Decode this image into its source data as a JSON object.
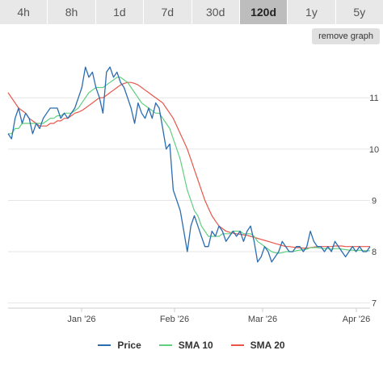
{
  "tabs": [
    {
      "label": "4h",
      "active": false
    },
    {
      "label": "8h",
      "active": false
    },
    {
      "label": "1d",
      "active": false
    },
    {
      "label": "7d",
      "active": false
    },
    {
      "label": "30d",
      "active": false
    },
    {
      "label": "120d",
      "active": true
    },
    {
      "label": "1y",
      "active": false
    },
    {
      "label": "5y",
      "active": false
    }
  ],
  "remove_graph_label": "remove graph",
  "colors": {
    "price": "#2b6cb0",
    "sma10": "#5fcf80",
    "sma20": "#e8564a"
  },
  "chart_data": {
    "type": "line",
    "x_ticks": [
      "Jan '26",
      "Feb '26",
      "Mar '26",
      "Apr '26"
    ],
    "y_ticks": [
      7,
      8,
      9,
      10,
      11
    ],
    "ylim": [
      6.9,
      11.9
    ],
    "grid": true,
    "legend_position": "bottom",
    "series": [
      {
        "name": "Price",
        "color": "#2b6cb0",
        "values": [
          10.3,
          10.2,
          10.6,
          10.8,
          10.5,
          10.7,
          10.6,
          10.3,
          10.5,
          10.4,
          10.6,
          10.7,
          10.8,
          10.8,
          10.8,
          10.6,
          10.7,
          10.6,
          10.7,
          10.8,
          11.0,
          11.2,
          11.6,
          11.4,
          11.5,
          11.2,
          11.0,
          10.7,
          11.5,
          11.6,
          11.4,
          11.5,
          11.3,
          11.2,
          11.0,
          10.8,
          10.5,
          10.9,
          10.7,
          10.6,
          10.8,
          10.6,
          10.9,
          10.8,
          10.4,
          10.0,
          10.1,
          9.2,
          9.0,
          8.8,
          8.4,
          8.0,
          8.5,
          8.7,
          8.5,
          8.3,
          8.1,
          8.1,
          8.4,
          8.3,
          8.5,
          8.4,
          8.2,
          8.3,
          8.4,
          8.3,
          8.4,
          8.2,
          8.4,
          8.5,
          8.2,
          7.8,
          7.9,
          8.1,
          8.0,
          7.8,
          7.9,
          8.0,
          8.2,
          8.1,
          8.0,
          8.0,
          8.1,
          8.1,
          8.0,
          8.1,
          8.4,
          8.2,
          8.1,
          8.1,
          8.0,
          8.1,
          8.0,
          8.2,
          8.1,
          8.0,
          7.9,
          8.0,
          8.1,
          8.0,
          8.1,
          8.0,
          8.0,
          8.1
        ]
      },
      {
        "name": "SMA 10",
        "color": "#5fcf80",
        "values": [
          10.3,
          10.3,
          10.4,
          10.4,
          10.5,
          10.5,
          10.5,
          10.5,
          10.5,
          10.5,
          10.5,
          10.55,
          10.6,
          10.6,
          10.65,
          10.65,
          10.7,
          10.7,
          10.7,
          10.75,
          10.8,
          10.9,
          11.0,
          11.1,
          11.15,
          11.2,
          11.2,
          11.2,
          11.25,
          11.3,
          11.35,
          11.4,
          11.4,
          11.35,
          11.3,
          11.2,
          11.1,
          11.0,
          10.9,
          10.85,
          10.8,
          10.75,
          10.7,
          10.7,
          10.6,
          10.5,
          10.4,
          10.2,
          10.0,
          9.8,
          9.5,
          9.2,
          9.0,
          8.8,
          8.7,
          8.5,
          8.4,
          8.3,
          8.3,
          8.3,
          8.3,
          8.35,
          8.35,
          8.35,
          8.4,
          8.4,
          8.4,
          8.35,
          8.35,
          8.35,
          8.3,
          8.2,
          8.15,
          8.1,
          8.05,
          8.0,
          7.98,
          7.97,
          7.98,
          8.0,
          8.0,
          8.0,
          8.02,
          8.03,
          8.04,
          8.05,
          8.08,
          8.08,
          8.08,
          8.07,
          8.06,
          8.06,
          8.05,
          8.06,
          8.06,
          8.05,
          8.04,
          8.03,
          8.03,
          8.02,
          8.03,
          8.02,
          8.02,
          8.02
        ]
      },
      {
        "name": "SMA 20",
        "color": "#e8564a",
        "values": [
          11.1,
          11.0,
          10.9,
          10.8,
          10.75,
          10.7,
          10.6,
          10.55,
          10.5,
          10.45,
          10.45,
          10.45,
          10.5,
          10.5,
          10.55,
          10.55,
          10.6,
          10.6,
          10.65,
          10.7,
          10.72,
          10.75,
          10.8,
          10.85,
          10.9,
          10.95,
          11.0,
          11.0,
          11.05,
          11.1,
          11.15,
          11.2,
          11.25,
          11.28,
          11.3,
          11.3,
          11.28,
          11.25,
          11.2,
          11.15,
          11.1,
          11.05,
          11.0,
          10.95,
          10.9,
          10.8,
          10.7,
          10.6,
          10.45,
          10.3,
          10.15,
          10.0,
          9.8,
          9.6,
          9.4,
          9.2,
          9.0,
          8.85,
          8.7,
          8.6,
          8.5,
          8.45,
          8.4,
          8.38,
          8.36,
          8.35,
          8.34,
          8.33,
          8.32,
          8.3,
          8.28,
          8.26,
          8.24,
          8.22,
          8.2,
          8.18,
          8.16,
          8.14,
          8.12,
          8.1,
          8.1,
          8.09,
          8.08,
          8.08,
          8.07,
          8.07,
          8.08,
          8.09,
          8.1,
          8.1,
          8.1,
          8.1,
          8.1,
          8.11,
          8.11,
          8.11,
          8.1,
          8.1,
          8.1,
          8.1,
          8.1,
          8.1,
          8.1,
          8.1
        ]
      }
    ]
  }
}
